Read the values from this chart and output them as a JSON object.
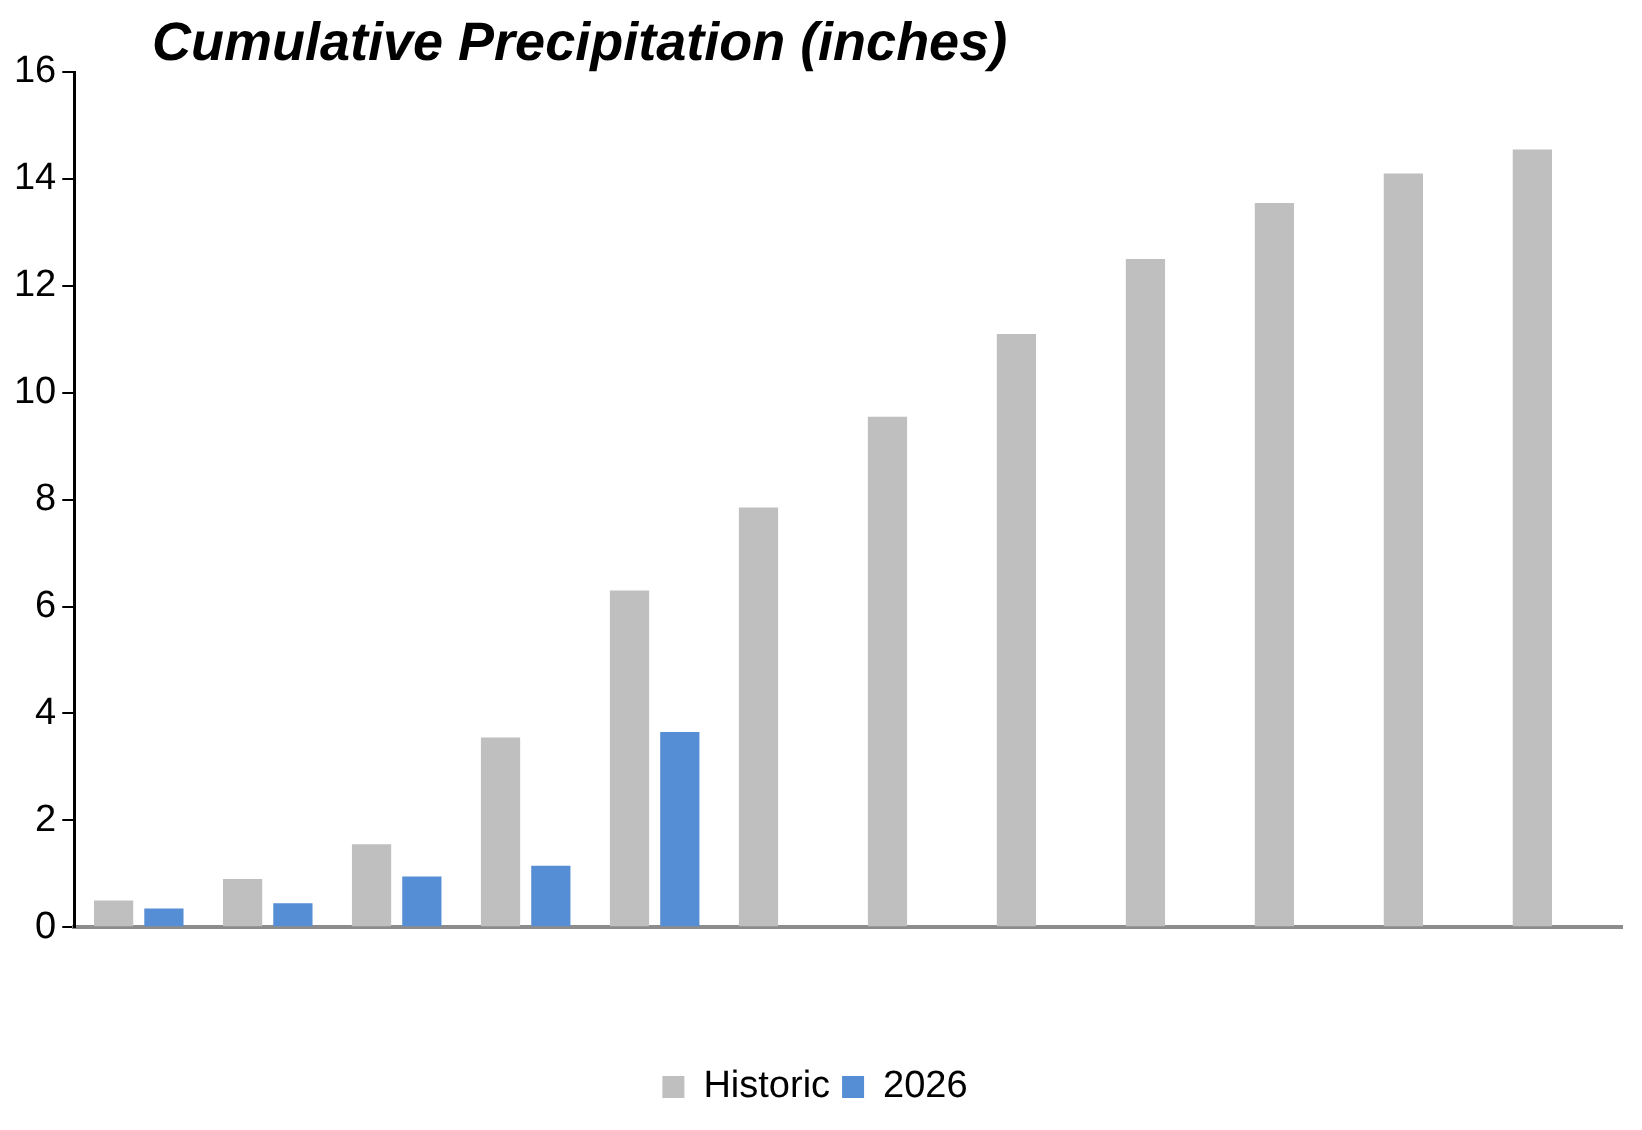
{
  "chart_data": {
    "type": "bar",
    "title": "Cumulative Precipitation (inches)",
    "categories": [
      null,
      null,
      null,
      null,
      null,
      null,
      null,
      null,
      null,
      null,
      null,
      null
    ],
    "series": [
      {
        "name": "Historic",
        "color": "#bfbfbf",
        "values": [
          0.5,
          0.9,
          1.55,
          3.55,
          6.3,
          7.85,
          9.55,
          11.1,
          12.5,
          13.55,
          14.1,
          14.55
        ]
      },
      {
        "name": "2026",
        "color": "#558ed5",
        "values": [
          0.35,
          0.45,
          0.95,
          1.15,
          3.65,
          null,
          null,
          null,
          null,
          null,
          null,
          null
        ]
      }
    ],
    "ylim": [
      0,
      16
    ],
    "yticks": [
      0,
      2,
      4,
      6,
      8,
      10,
      12,
      14,
      16
    ],
    "grid": false,
    "legend": "bottom"
  }
}
